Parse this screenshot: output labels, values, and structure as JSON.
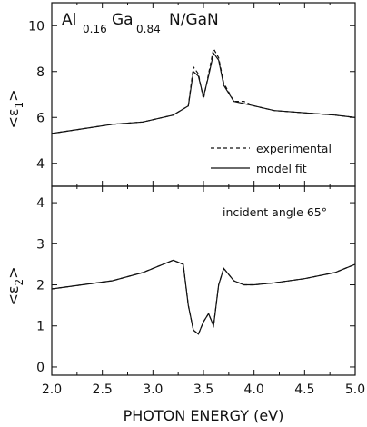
{
  "chart_data": {
    "type": "line",
    "layout": "two stacked panels sharing x-axis",
    "title": {
      "parts": [
        {
          "text": "Al",
          "sub": "0.16"
        },
        {
          "text": "Ga",
          "sub": "0.84"
        },
        {
          "text": "N/GaN",
          "sub": ""
        }
      ]
    },
    "xlabel": "PHOTON ENERGY (eV)",
    "xlim": [
      2.0,
      5.0
    ],
    "xticks": [
      "2.0",
      "2.5",
      "3.0",
      "3.5",
      "4.0",
      "4.5",
      "5.0"
    ],
    "panels": [
      {
        "id": "eps1",
        "ylabel": {
          "base": "<ε",
          "sub": "1",
          "close": ">"
        },
        "ylim": [
          3.0,
          11.0
        ],
        "yticks": [
          "4",
          "6",
          "8",
          "10"
        ],
        "legend": {
          "position": "lower-right",
          "entries": [
            {
              "label": "experimental",
              "style": "dashed"
            },
            {
              "label": "model fit",
              "style": "solid"
            }
          ]
        },
        "series": [
          {
            "name": "experimental",
            "style": "dashed",
            "color": "#111111",
            "x": [
              2.0,
              2.3,
              2.6,
              2.9,
              3.2,
              3.35,
              3.4,
              3.45,
              3.5,
              3.55,
              3.6,
              3.65,
              3.7,
              3.8,
              3.9,
              4.0,
              4.2,
              4.5,
              4.8,
              5.0
            ],
            "y": [
              5.3,
              5.5,
              5.7,
              5.8,
              6.1,
              6.5,
              8.2,
              7.9,
              6.8,
              7.9,
              9.0,
              8.6,
              7.5,
              6.7,
              6.7,
              6.5,
              6.3,
              6.2,
              6.1,
              6.0
            ]
          },
          {
            "name": "model fit",
            "style": "solid",
            "color": "#111111",
            "x": [
              2.0,
              2.3,
              2.6,
              2.9,
              3.2,
              3.35,
              3.4,
              3.45,
              3.5,
              3.55,
              3.6,
              3.65,
              3.7,
              3.8,
              3.9,
              4.0,
              4.2,
              4.5,
              4.8,
              5.0
            ],
            "y": [
              5.3,
              5.5,
              5.7,
              5.8,
              6.1,
              6.5,
              8.0,
              7.8,
              6.9,
              7.8,
              8.8,
              8.5,
              7.4,
              6.7,
              6.6,
              6.5,
              6.3,
              6.2,
              6.1,
              6.0
            ]
          }
        ]
      },
      {
        "id": "eps2",
        "ylabel": {
          "base": "<ε",
          "sub": "2",
          "close": ">"
        },
        "ylim": [
          -0.2,
          4.4
        ],
        "yticks": [
          "0",
          "1",
          "2",
          "3",
          "4"
        ],
        "annotation": "incident angle 65°",
        "series": [
          {
            "name": "experimental",
            "style": "dashed",
            "color": "#111111",
            "x": [
              2.0,
              2.3,
              2.6,
              2.9,
              3.1,
              3.2,
              3.3,
              3.35,
              3.4,
              3.45,
              3.5,
              3.55,
              3.6,
              3.65,
              3.7,
              3.8,
              3.9,
              4.0,
              4.2,
              4.5,
              4.8,
              5.0
            ],
            "y": [
              1.9,
              2.0,
              2.1,
              2.3,
              2.5,
              2.6,
              2.5,
              1.5,
              0.9,
              0.8,
              1.1,
              1.3,
              1.0,
              2.0,
              2.4,
              2.1,
              2.0,
              2.0,
              2.05,
              2.15,
              2.3,
              2.5
            ]
          },
          {
            "name": "model fit",
            "style": "solid",
            "color": "#111111",
            "x": [
              2.0,
              2.3,
              2.6,
              2.9,
              3.1,
              3.2,
              3.3,
              3.35,
              3.4,
              3.45,
              3.5,
              3.55,
              3.6,
              3.65,
              3.7,
              3.8,
              3.9,
              4.0,
              4.2,
              4.5,
              4.8,
              5.0
            ],
            "y": [
              1.9,
              2.0,
              2.1,
              2.3,
              2.5,
              2.6,
              2.5,
              1.5,
              0.9,
              0.8,
              1.1,
              1.3,
              1.0,
              2.0,
              2.4,
              2.1,
              2.0,
              2.0,
              2.05,
              2.15,
              2.3,
              2.5
            ]
          }
        ]
      }
    ]
  }
}
